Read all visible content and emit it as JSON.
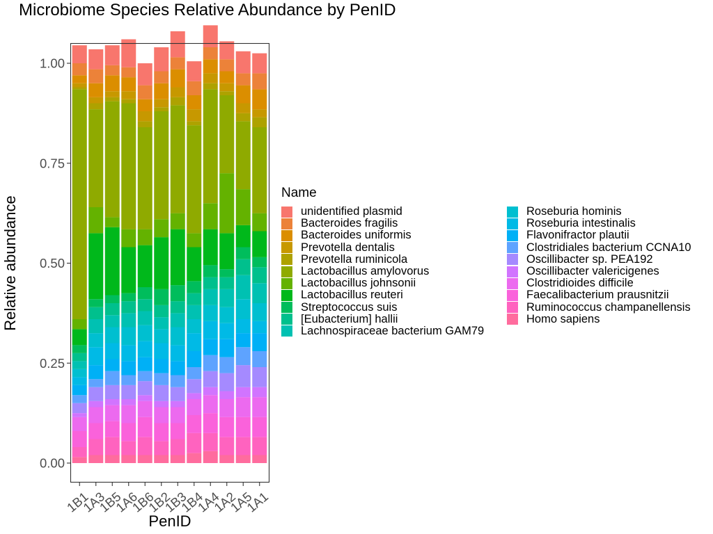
{
  "chart_data": {
    "type": "bar",
    "stacked": true,
    "title": "Microbiome Species Relative Abundance by PenID",
    "xlabel": "PenID",
    "ylabel": "Relative abundance",
    "ylim": [
      0,
      1
    ],
    "yticks": [
      0.0,
      0.25,
      0.5,
      0.75,
      1.0
    ],
    "ytick_labels": [
      "0.00",
      "0.25",
      "0.50",
      "0.75",
      "1.00"
    ],
    "grid": false,
    "legend_title": "Name",
    "legend_position": "right",
    "categories": [
      "1B1",
      "1A3",
      "1B5",
      "1A6",
      "1B6",
      "1B2",
      "1B3",
      "1B4",
      "1A4",
      "1A2",
      "1A5",
      "1A1"
    ],
    "series": [
      {
        "name": "unidentified plasmid",
        "color": "#F8766D",
        "values": [
          0.045,
          0.05,
          0.05,
          0.07,
          0.055,
          0.06,
          0.065,
          0.05,
          0.055,
          0.045,
          0.055,
          0.05
        ]
      },
      {
        "name": "Bacteroides fragilis",
        "color": "#EC8239",
        "values": [
          0.03,
          0.035,
          0.025,
          0.025,
          0.035,
          0.03,
          0.03,
          0.035,
          0.03,
          0.03,
          0.03,
          0.04
        ]
      },
      {
        "name": "Bacteroides uniformis",
        "color": "#DB8E00",
        "values": [
          0.02,
          0.035,
          0.04,
          0.035,
          0.03,
          0.04,
          0.045,
          0.035,
          0.035,
          0.03,
          0.045,
          0.05
        ]
      },
      {
        "name": "Prevotella dentalis",
        "color": "#C79800",
        "values": [
          0.01,
          0.015,
          0.015,
          0.02,
          0.025,
          0.02,
          0.025,
          0.03,
          0.025,
          0.02,
          0.025,
          0.02
        ]
      },
      {
        "name": "Prevotella ruminicola",
        "color": "#AEA200",
        "values": [
          0.005,
          0.015,
          0.01,
          0.01,
          0.015,
          0.01,
          0.02,
          0.01,
          0.015,
          0.01,
          0.02,
          0.025
        ]
      },
      {
        "name": "Lactobacillus amylovorus",
        "color": "#8FAA00",
        "values": [
          0.575,
          0.245,
          0.29,
          0.315,
          0.255,
          0.27,
          0.27,
          0.27,
          0.285,
          0.195,
          0.17,
          0.215
        ]
      },
      {
        "name": "Lactobacillus johnsonii",
        "color": "#64B200",
        "values": [
          0.025,
          0.065,
          0.025,
          0.045,
          0.04,
          0.045,
          0.04,
          0.035,
          0.065,
          0.15,
          0.09,
          0.045
        ]
      },
      {
        "name": "Lactobacillus reuteri",
        "color": "#00B81B",
        "values": [
          0.04,
          0.165,
          0.17,
          0.115,
          0.105,
          0.13,
          0.14,
          0.085,
          0.09,
          0.09,
          0.055,
          0.065
        ]
      },
      {
        "name": "Streptococcus suis",
        "color": "#00BD5C",
        "values": [
          0.02,
          0.02,
          0.02,
          0.02,
          0.03,
          0.04,
          0.04,
          0.03,
          0.03,
          0.02,
          0.03,
          0.025
        ]
      },
      {
        "name": "[Eubacterium] hallii",
        "color": "#00C08D",
        "values": [
          0.02,
          0.03,
          0.03,
          0.03,
          0.03,
          0.03,
          0.03,
          0.03,
          0.03,
          0.03,
          0.04,
          0.04
        ]
      },
      {
        "name": "Lachnospiraceae bacterium GAM79",
        "color": "#00C1B2",
        "values": [
          0.02,
          0.035,
          0.03,
          0.035,
          0.035,
          0.03,
          0.035,
          0.035,
          0.04,
          0.045,
          0.06,
          0.05
        ]
      },
      {
        "name": "Roseburia hominis",
        "color": "#00BFD0",
        "values": [
          0.02,
          0.035,
          0.04,
          0.045,
          0.04,
          0.035,
          0.045,
          0.035,
          0.04,
          0.04,
          0.05,
          0.045
        ]
      },
      {
        "name": "Roseburia intestinalis",
        "color": "#00BAE6",
        "values": [
          0.02,
          0.045,
          0.04,
          0.04,
          0.04,
          0.04,
          0.04,
          0.045,
          0.045,
          0.04,
          0.035,
          0.03
        ]
      },
      {
        "name": "Flavonifractor plautii",
        "color": "#00B0F6",
        "values": [
          0.025,
          0.035,
          0.03,
          0.035,
          0.035,
          0.035,
          0.035,
          0.04,
          0.04,
          0.045,
          0.035,
          0.045
        ]
      },
      {
        "name": "Clostridiales bacterium CCNA10",
        "color": "#5EA3FF",
        "values": [
          0.02,
          0.02,
          0.035,
          0.025,
          0.025,
          0.03,
          0.03,
          0.03,
          0.04,
          0.04,
          0.045,
          0.04
        ]
      },
      {
        "name": "Oscillibacter sp. PEA192",
        "color": "#A58AFF",
        "values": [
          0.025,
          0.035,
          0.035,
          0.035,
          0.035,
          0.04,
          0.035,
          0.035,
          0.04,
          0.045,
          0.055,
          0.05
        ]
      },
      {
        "name": "Oscillibacter valericigenes",
        "color": "#D174FF",
        "values": [
          0.01,
          0.015,
          0.015,
          0.015,
          0.015,
          0.015,
          0.015,
          0.015,
          0.02,
          0.02,
          0.025,
          0.025
        ]
      },
      {
        "name": "Clostridioides difficile",
        "color": "#EC6AEF",
        "values": [
          0.035,
          0.04,
          0.04,
          0.045,
          0.04,
          0.04,
          0.04,
          0.04,
          0.045,
          0.045,
          0.05,
          0.05
        ]
      },
      {
        "name": "Faecalibacterium prausnitzii",
        "color": "#FA62DB",
        "values": [
          0.04,
          0.04,
          0.04,
          0.045,
          0.05,
          0.045,
          0.04,
          0.045,
          0.05,
          0.05,
          0.05,
          0.05
        ]
      },
      {
        "name": "Ruminococcus champanellensis",
        "color": "#FF63BF",
        "values": [
          0.025,
          0.04,
          0.045,
          0.035,
          0.045,
          0.035,
          0.04,
          0.05,
          0.045,
          0.045,
          0.045,
          0.045
        ]
      },
      {
        "name": "Homo sapiens",
        "color": "#FF6C9E",
        "values": [
          0.015,
          0.02,
          0.02,
          0.02,
          0.02,
          0.02,
          0.02,
          0.025,
          0.03,
          0.02,
          0.02,
          0.02
        ]
      }
    ]
  }
}
